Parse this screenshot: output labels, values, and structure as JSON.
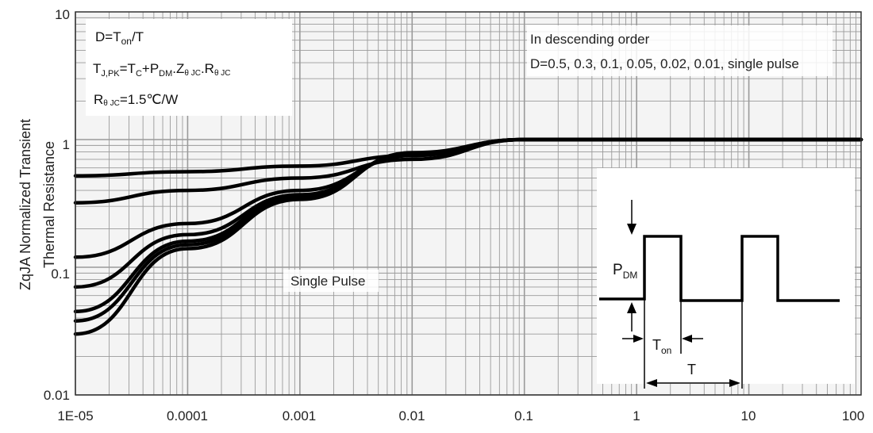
{
  "chart_data": {
    "type": "line",
    "x_scale": "log",
    "y_scale": "log",
    "xlim": [
      1e-05,
      100
    ],
    "ylim": [
      0.01,
      10
    ],
    "x_tick_labels": [
      "1E-05",
      "0.0001",
      "0.001",
      "0.01",
      "0.1",
      "1",
      "10",
      "100"
    ],
    "y_tick_labels": [
      "0.01",
      "0.1",
      "1",
      "10"
    ],
    "ylabel_line1": "ZqJA Normalized Transient",
    "ylabel_line2": "Thermal Resistance",
    "grid": true,
    "series": [
      {
        "x": [
          1e-05,
          0.0001,
          0.001,
          0.01,
          0.1,
          100
        ],
        "values": [
          0.52,
          0.56,
          0.62,
          0.75,
          1.0,
          1.0
        ]
      },
      {
        "x": [
          1e-05,
          0.0001,
          0.001,
          0.01,
          0.1,
          100
        ],
        "values": [
          0.32,
          0.4,
          0.5,
          0.7,
          1.0,
          1.0
        ]
      },
      {
        "x": [
          1e-05,
          0.0001,
          0.001,
          0.01,
          0.1,
          100
        ],
        "values": [
          0.12,
          0.22,
          0.4,
          0.75,
          1.0,
          1.0
        ]
      },
      {
        "x": [
          1e-05,
          0.0001,
          0.001,
          0.01,
          0.1,
          100
        ],
        "values": [
          0.07,
          0.18,
          0.37,
          0.76,
          1.0,
          1.0
        ]
      },
      {
        "x": [
          1e-05,
          0.0001,
          0.001,
          0.01,
          0.1,
          100
        ],
        "values": [
          0.045,
          0.16,
          0.36,
          0.77,
          1.0,
          1.0
        ]
      },
      {
        "x": [
          1e-05,
          0.0001,
          0.001,
          0.01,
          0.1,
          100
        ],
        "values": [
          0.038,
          0.15,
          0.35,
          0.78,
          1.0,
          1.0
        ]
      },
      {
        "x": [
          1e-05,
          0.0001,
          0.001,
          0.01,
          0.1,
          100
        ],
        "values": [
          0.03,
          0.14,
          0.34,
          0.79,
          1.0,
          1.0
        ]
      }
    ],
    "annotations": {
      "formula_d": "D=T",
      "formula_d_sub": "on",
      "formula_d_tail": "/T",
      "formula_tj_a": "T",
      "formula_tj_a_sub": "J,PK",
      "formula_tj_b": "=T",
      "formula_tj_b_sub": "C",
      "formula_tj_c": "+P",
      "formula_tj_c_sub": "DM",
      "formula_tj_d": ".Z",
      "formula_tj_d_sub": "θ JC",
      "formula_tj_e": ".R",
      "formula_tj_e_sub": "θ JC",
      "formula_r_a": "R",
      "formula_r_a_sub": "θ JC",
      "formula_r_b": "=1.5℃/W",
      "order_line1": "In descending order",
      "order_line2": "D=0.5, 0.3, 0.1, 0.05, 0.02, 0.01, single pulse",
      "single_pulse": "Single Pulse",
      "pdm": "P",
      "pdm_sub": "DM",
      "ton": "T",
      "ton_sub": "on",
      "period": "T"
    },
    "colors": {
      "curve": "#000000",
      "grid": "#9a9a9a",
      "axis": "#333333"
    }
  }
}
